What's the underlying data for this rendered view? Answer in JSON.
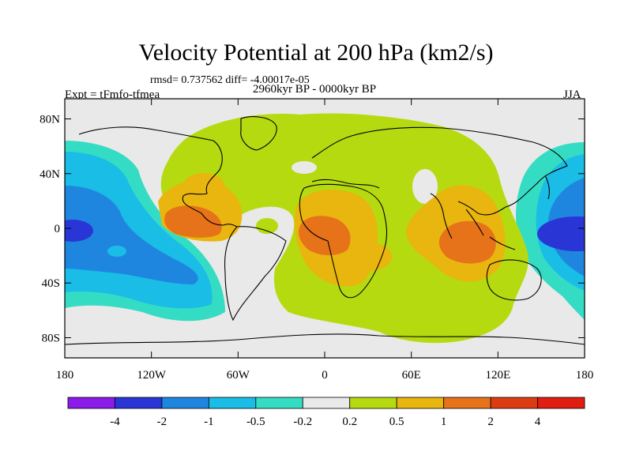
{
  "title": "Velocity Potential at 200 hPa (km2/s)",
  "stats": "rmsd= 0.737562 diff= -4.00017e-05",
  "experiment": "Expt = tFmfo-tfmea",
  "period": "2960kyr BP - 0000kyr BP",
  "season": "JJA",
  "axes": {
    "y_ticks": [
      "80N",
      "40N",
      "0",
      "40S",
      "80S"
    ],
    "y_values": [
      80,
      40,
      0,
      -40,
      -80
    ],
    "x_ticks": [
      "180",
      "120W",
      "60W",
      "0",
      "60E",
      "120E",
      "180"
    ],
    "x_values": [
      -180,
      -120,
      -60,
      0,
      60,
      120,
      180
    ]
  },
  "colorbar": {
    "labels": [
      "-4",
      "-2",
      "-1",
      "-0.5",
      "-0.2",
      "0.2",
      "0.5",
      "1",
      "2",
      "4"
    ],
    "colors": [
      "#8a1be8",
      "#2a35d6",
      "#1f86df",
      "#19bde6",
      "#35dcc4",
      "#e9e9e9",
      "#b6da10",
      "#e9b50f",
      "#e6731a",
      "#dd3b12",
      "#df1d10"
    ]
  },
  "map_colors": {
    "neutral": "#e9e9e9",
    "coast": "#000000"
  }
}
